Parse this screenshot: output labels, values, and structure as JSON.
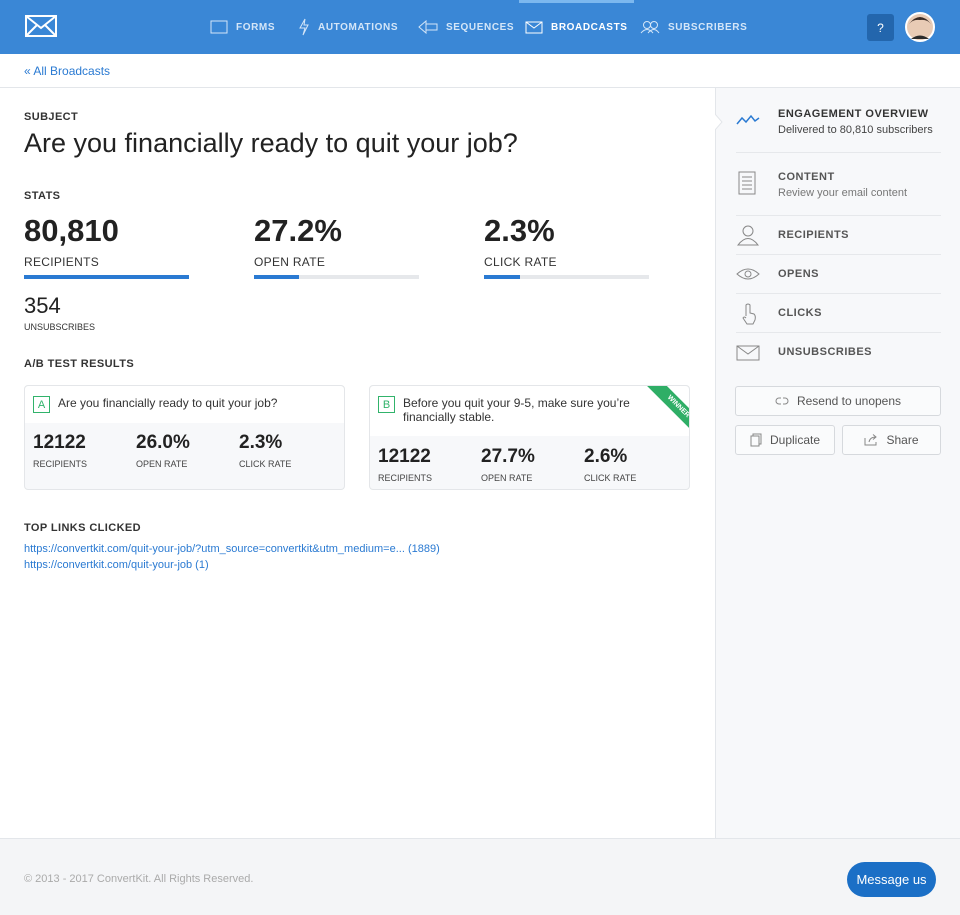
{
  "nav": {
    "items": [
      "FORMS",
      "AUTOMATIONS",
      "SEQUENCES",
      "BROADCASTS",
      "SUBSCRIBERS"
    ],
    "active": 3,
    "help": "?"
  },
  "breadcrumb": "« All Broadcasts",
  "subject": {
    "label": "SUBJECT",
    "title": "Are you financially ready to quit your job?"
  },
  "stats": {
    "label": "STATS",
    "items": [
      {
        "value": "80,810",
        "label": "RECIPIENTS"
      },
      {
        "value": "27.2%",
        "label": "OPEN RATE"
      },
      {
        "value": "2.3%",
        "label": "CLICK RATE"
      }
    ],
    "unsubscribes": {
      "value": "354",
      "label": "UNSUBSCRIBES"
    }
  },
  "ab_test": {
    "label": "A/B TEST RESULTS",
    "variants": [
      {
        "letter": "A",
        "subject": "Are you financially ready to quit your job?",
        "stats": [
          {
            "value": "12122",
            "label": "RECIPIENTS"
          },
          {
            "value": "26.0%",
            "label": "OPEN RATE"
          },
          {
            "value": "2.3%",
            "label": "CLICK RATE"
          }
        ]
      },
      {
        "letter": "B",
        "subject": "Before you quit your 9-5, make sure you’re financially stable.",
        "badge": "WINNER",
        "stats": [
          {
            "value": "12122",
            "label": "RECIPIENTS"
          },
          {
            "value": "27.7%",
            "label": "OPEN RATE"
          },
          {
            "value": "2.6%",
            "label": "CLICK RATE"
          }
        ]
      }
    ]
  },
  "top_links": {
    "label": "TOP LINKS CLICKED",
    "links": [
      "https://convertkit.com/quit-your-job/?utm_source=convertkit&utm_medium=e... (1889)",
      "https://convertkit.com/quit-your-job (1)"
    ]
  },
  "sidebar": {
    "items": [
      {
        "title": "ENGAGEMENT OVERVIEW",
        "subtitle": "Delivered to 80,810 subscribers"
      },
      {
        "title": "CONTENT",
        "subtitle": "Review your email content"
      },
      {
        "title": "RECIPIENTS"
      },
      {
        "title": "OPENS"
      },
      {
        "title": "CLICKS"
      },
      {
        "title": "UNSUBSCRIBES"
      }
    ],
    "buttons": [
      "Resend to unopens",
      "Duplicate",
      "Share"
    ]
  },
  "footer": {
    "copyright": "© 2013 - 2017 ConvertKit. All Rights Reserved.",
    "chat": "Message us"
  }
}
